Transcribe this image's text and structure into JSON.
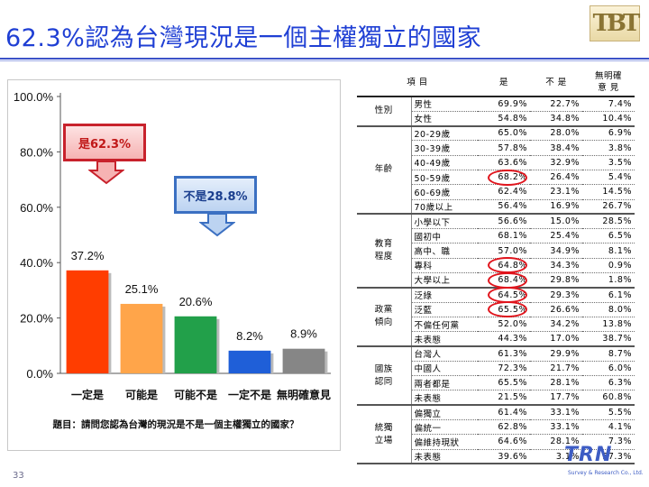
{
  "slide": {
    "title": "62.3%認為台灣現況是一個主權獨立的國家",
    "page_number": "33",
    "logo_text": "TBT",
    "brand_text": "TRN",
    "brand_sub": "Survey & Research Co., Ltd."
  },
  "callouts": {
    "yes": "是62.3%",
    "no": "不是28.8%"
  },
  "chart_data": {
    "type": "bar",
    "categories": [
      "一定是",
      "可能是",
      "可能不是",
      "一定不是",
      "無明確意見"
    ],
    "values": [
      37.2,
      25.1,
      20.6,
      8.2,
      8.9
    ],
    "value_labels": [
      "37.2%",
      "25.1%",
      "20.6%",
      "8.2%",
      "8.9%"
    ],
    "colors": [
      "#ff3d00",
      "#ffa54a",
      "#22a04a",
      "#1f5fd8",
      "#868686"
    ],
    "yticks": [
      "100.0%",
      "80.0%",
      "60.0%",
      "40.0%",
      "20.0%",
      "0.0%"
    ],
    "ylim": [
      0,
      100
    ],
    "title": "題目：請問您認為台灣的現況是不是一個主權獨立的國家？",
    "xlabel": "",
    "ylabel": ""
  },
  "table": {
    "headers": [
      "項 目",
      "",
      "是",
      "不 是",
      "無明確\n意 見"
    ],
    "groups": [
      {
        "name": "性別",
        "rows": [
          {
            "label": "男性",
            "v": [
              "69.9%",
              "22.7%",
              "7.4%"
            ]
          },
          {
            "label": "女性",
            "v": [
              "54.8%",
              "34.8%",
              "10.4%"
            ]
          }
        ]
      },
      {
        "name": "年齡",
        "rows": [
          {
            "label": "20-29歲",
            "v": [
              "65.0%",
              "28.0%",
              "6.9%"
            ]
          },
          {
            "label": "30-39歲",
            "v": [
              "57.8%",
              "38.4%",
              "3.8%"
            ]
          },
          {
            "label": "40-49歲",
            "v": [
              "63.6%",
              "32.9%",
              "3.5%"
            ]
          },
          {
            "label": "50-59歲",
            "v": [
              "68.2%",
              "26.4%",
              "5.4%"
            ]
          },
          {
            "label": "60-69歲",
            "v": [
              "62.4%",
              "23.1%",
              "14.5%"
            ]
          },
          {
            "label": "70歲以上",
            "v": [
              "56.4%",
              "16.9%",
              "26.7%"
            ]
          }
        ]
      },
      {
        "name": "教育\n程度",
        "rows": [
          {
            "label": "小學以下",
            "v": [
              "56.6%",
              "15.0%",
              "28.5%"
            ]
          },
          {
            "label": "國初中",
            "v": [
              "68.1%",
              "25.4%",
              "6.5%"
            ]
          },
          {
            "label": "高中、職",
            "v": [
              "57.0%",
              "34.9%",
              "8.1%"
            ]
          },
          {
            "label": "專科",
            "v": [
              "64.8%",
              "34.3%",
              "0.9%"
            ]
          },
          {
            "label": "大學以上",
            "v": [
              "68.4%",
              "29.8%",
              "1.8%"
            ]
          }
        ]
      },
      {
        "name": "政黨\n傾向",
        "rows": [
          {
            "label": "泛綠",
            "v": [
              "64.5%",
              "29.3%",
              "6.1%"
            ]
          },
          {
            "label": "泛藍",
            "v": [
              "65.5%",
              "26.6%",
              "8.0%"
            ]
          },
          {
            "label": "不偏任何黨",
            "v": [
              "52.0%",
              "34.2%",
              "13.8%"
            ]
          },
          {
            "label": "未表態",
            "v": [
              "44.3%",
              "17.0%",
              "38.7%"
            ]
          }
        ]
      },
      {
        "name": "國族\n認同",
        "rows": [
          {
            "label": "台灣人",
            "v": [
              "61.3%",
              "29.9%",
              "8.7%"
            ]
          },
          {
            "label": "中國人",
            "v": [
              "72.3%",
              "21.7%",
              "6.0%"
            ]
          },
          {
            "label": "兩者都是",
            "v": [
              "65.5%",
              "28.1%",
              "6.3%"
            ]
          },
          {
            "label": "未表態",
            "v": [
              "21.5%",
              "17.7%",
              "60.8%"
            ]
          }
        ]
      },
      {
        "name": "統獨\n立場",
        "rows": [
          {
            "label": "偏獨立",
            "v": [
              "61.4%",
              "33.1%",
              "5.5%"
            ]
          },
          {
            "label": "偏統一",
            "v": [
              "62.8%",
              "33.1%",
              "4.1%"
            ]
          },
          {
            "label": "偏維持現狀",
            "v": [
              "64.6%",
              "28.1%",
              "7.3%"
            ]
          },
          {
            "label": "未表態",
            "v": [
              "39.6%",
              "3.1%",
              "57.3%"
            ]
          }
        ]
      }
    ]
  }
}
